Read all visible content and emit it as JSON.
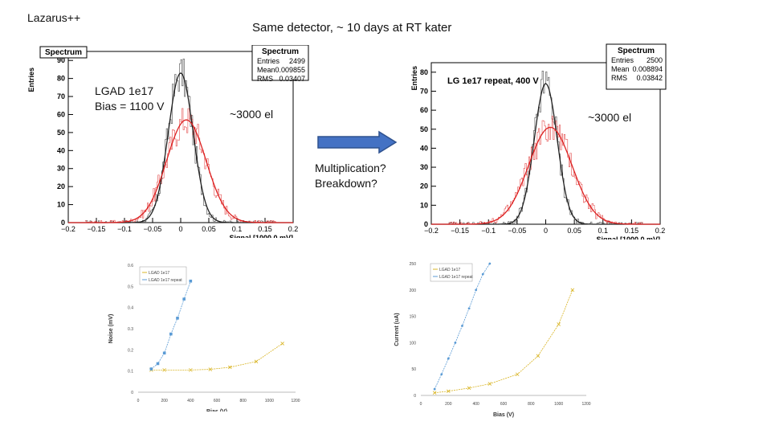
{
  "slide": {
    "corner_label": "Lazarus++",
    "title": "Same detector, ~ 10 days at RT kater",
    "left_annotation_line1": "LGAD 1e17",
    "left_annotation_line2": "Bias = 1100 V",
    "left_electrons": "~3000 el",
    "right_electrons": "~3000 el",
    "question_line1": "Multiplication?",
    "question_line2": "Breakdown?",
    "arrow_color": "#4472c4"
  },
  "chart_data": [
    {
      "type": "histogram",
      "title": "Spectrum",
      "stats": {
        "title": "Spectrum",
        "rows": [
          [
            "Entries",
            "2499"
          ],
          [
            "Mean",
            "0.009855"
          ],
          [
            "RMS",
            "0.03407"
          ]
        ]
      },
      "xlabel": "Signal [1000.0 mV]",
      "ylabel": "Entries",
      "xlim": [
        -0.2,
        0.2
      ],
      "ylim": [
        0,
        95
      ],
      "xticks": [
        "−0.2",
        "−0.15",
        "−0.1",
        "−0.05",
        "0",
        "0.05",
        "0.1",
        "0.15",
        "0.2"
      ],
      "yticks": [
        "0",
        "10",
        "20",
        "30",
        "40",
        "50",
        "60",
        "70",
        "80",
        "90"
      ],
      "series": [
        {
          "name": "black",
          "color": "#222222",
          "mean": 0.0,
          "sigma": 0.022,
          "amp": 83
        },
        {
          "name": "red",
          "color": "#dd2222",
          "mean": 0.01,
          "sigma": 0.035,
          "amp": 57
        }
      ]
    },
    {
      "type": "histogram",
      "title": "LG 1e17 repeat, 400 V",
      "stats": {
        "title": "Spectrum",
        "rows": [
          [
            "Entries",
            "2500"
          ],
          [
            "Mean",
            "0.008894"
          ],
          [
            "RMS",
            "0.03842"
          ]
        ]
      },
      "xlabel": "Signal [1000.0 mV]",
      "ylabel": "Entries",
      "xlim": [
        -0.2,
        0.2
      ],
      "ylim": [
        0,
        85
      ],
      "xticks": [
        "−0.2",
        "−0.15",
        "−0.1",
        "−0.05",
        "0",
        "0.05",
        "0.1",
        "0.15",
        "0.2"
      ],
      "yticks": [
        "0",
        "10",
        "20",
        "30",
        "40",
        "50",
        "60",
        "70",
        "80"
      ],
      "series": [
        {
          "name": "black",
          "color": "#222222",
          "mean": 0.0,
          "sigma": 0.02,
          "amp": 74
        },
        {
          "name": "red",
          "color": "#dd2222",
          "mean": 0.008,
          "sigma": 0.038,
          "amp": 51
        }
      ]
    },
    {
      "type": "line",
      "title": "",
      "xlabel": "Bias (V)",
      "ylabel": "Noise (mV)",
      "xlim": [
        0,
        1200
      ],
      "ylim": [
        0,
        0.6
      ],
      "xticks": [
        "0",
        "200",
        "400",
        "600",
        "800",
        "1000",
        "1200"
      ],
      "yticks": [
        "0",
        "0.1",
        "0.2",
        "0.3",
        "0.4",
        "0.5",
        "0.6"
      ],
      "legend": [
        "LGAD 1e17",
        "LGAD 1e17 repeat"
      ],
      "series": [
        {
          "name": "LGAD 1e17",
          "color": "#d9b526",
          "marker": "x",
          "x": [
            100,
            200,
            400,
            550,
            700,
            900,
            1100
          ],
          "y": [
            0.105,
            0.105,
            0.105,
            0.108,
            0.118,
            0.145,
            0.23
          ]
        },
        {
          "name": "LGAD 1e17 repeat",
          "color": "#5b9bd5",
          "marker": "square",
          "x": [
            100,
            150,
            200,
            250,
            300,
            350,
            400
          ],
          "y": [
            0.11,
            0.135,
            0.185,
            0.275,
            0.35,
            0.44,
            0.525
          ]
        }
      ]
    },
    {
      "type": "line",
      "title": "",
      "xlabel": "Bias (V)",
      "ylabel": "Current (uA)",
      "xlim": [
        0,
        1200
      ],
      "ylim": [
        0,
        250
      ],
      "xticks": [
        "0",
        "200",
        "400",
        "600",
        "800",
        "1000",
        "1200"
      ],
      "yticks": [
        "0",
        "50",
        "100",
        "150",
        "200",
        "250"
      ],
      "legend": [
        "LGAD 1e17",
        "LGAD 1e17 repeat"
      ],
      "series": [
        {
          "name": "LGAD 1e17",
          "color": "#d9b526",
          "marker": "x",
          "x": [
            100,
            200,
            350,
            500,
            700,
            850,
            1000,
            1100
          ],
          "y": [
            5,
            8,
            14,
            22,
            40,
            75,
            135,
            200
          ]
        },
        {
          "name": "LGAD 1e17 repeat",
          "color": "#5b9bd5",
          "marker": "dot",
          "x": [
            100,
            150,
            200,
            250,
            300,
            350,
            400,
            450,
            500
          ],
          "y": [
            12,
            40,
            70,
            100,
            132,
            165,
            200,
            230,
            250
          ]
        }
      ]
    }
  ]
}
